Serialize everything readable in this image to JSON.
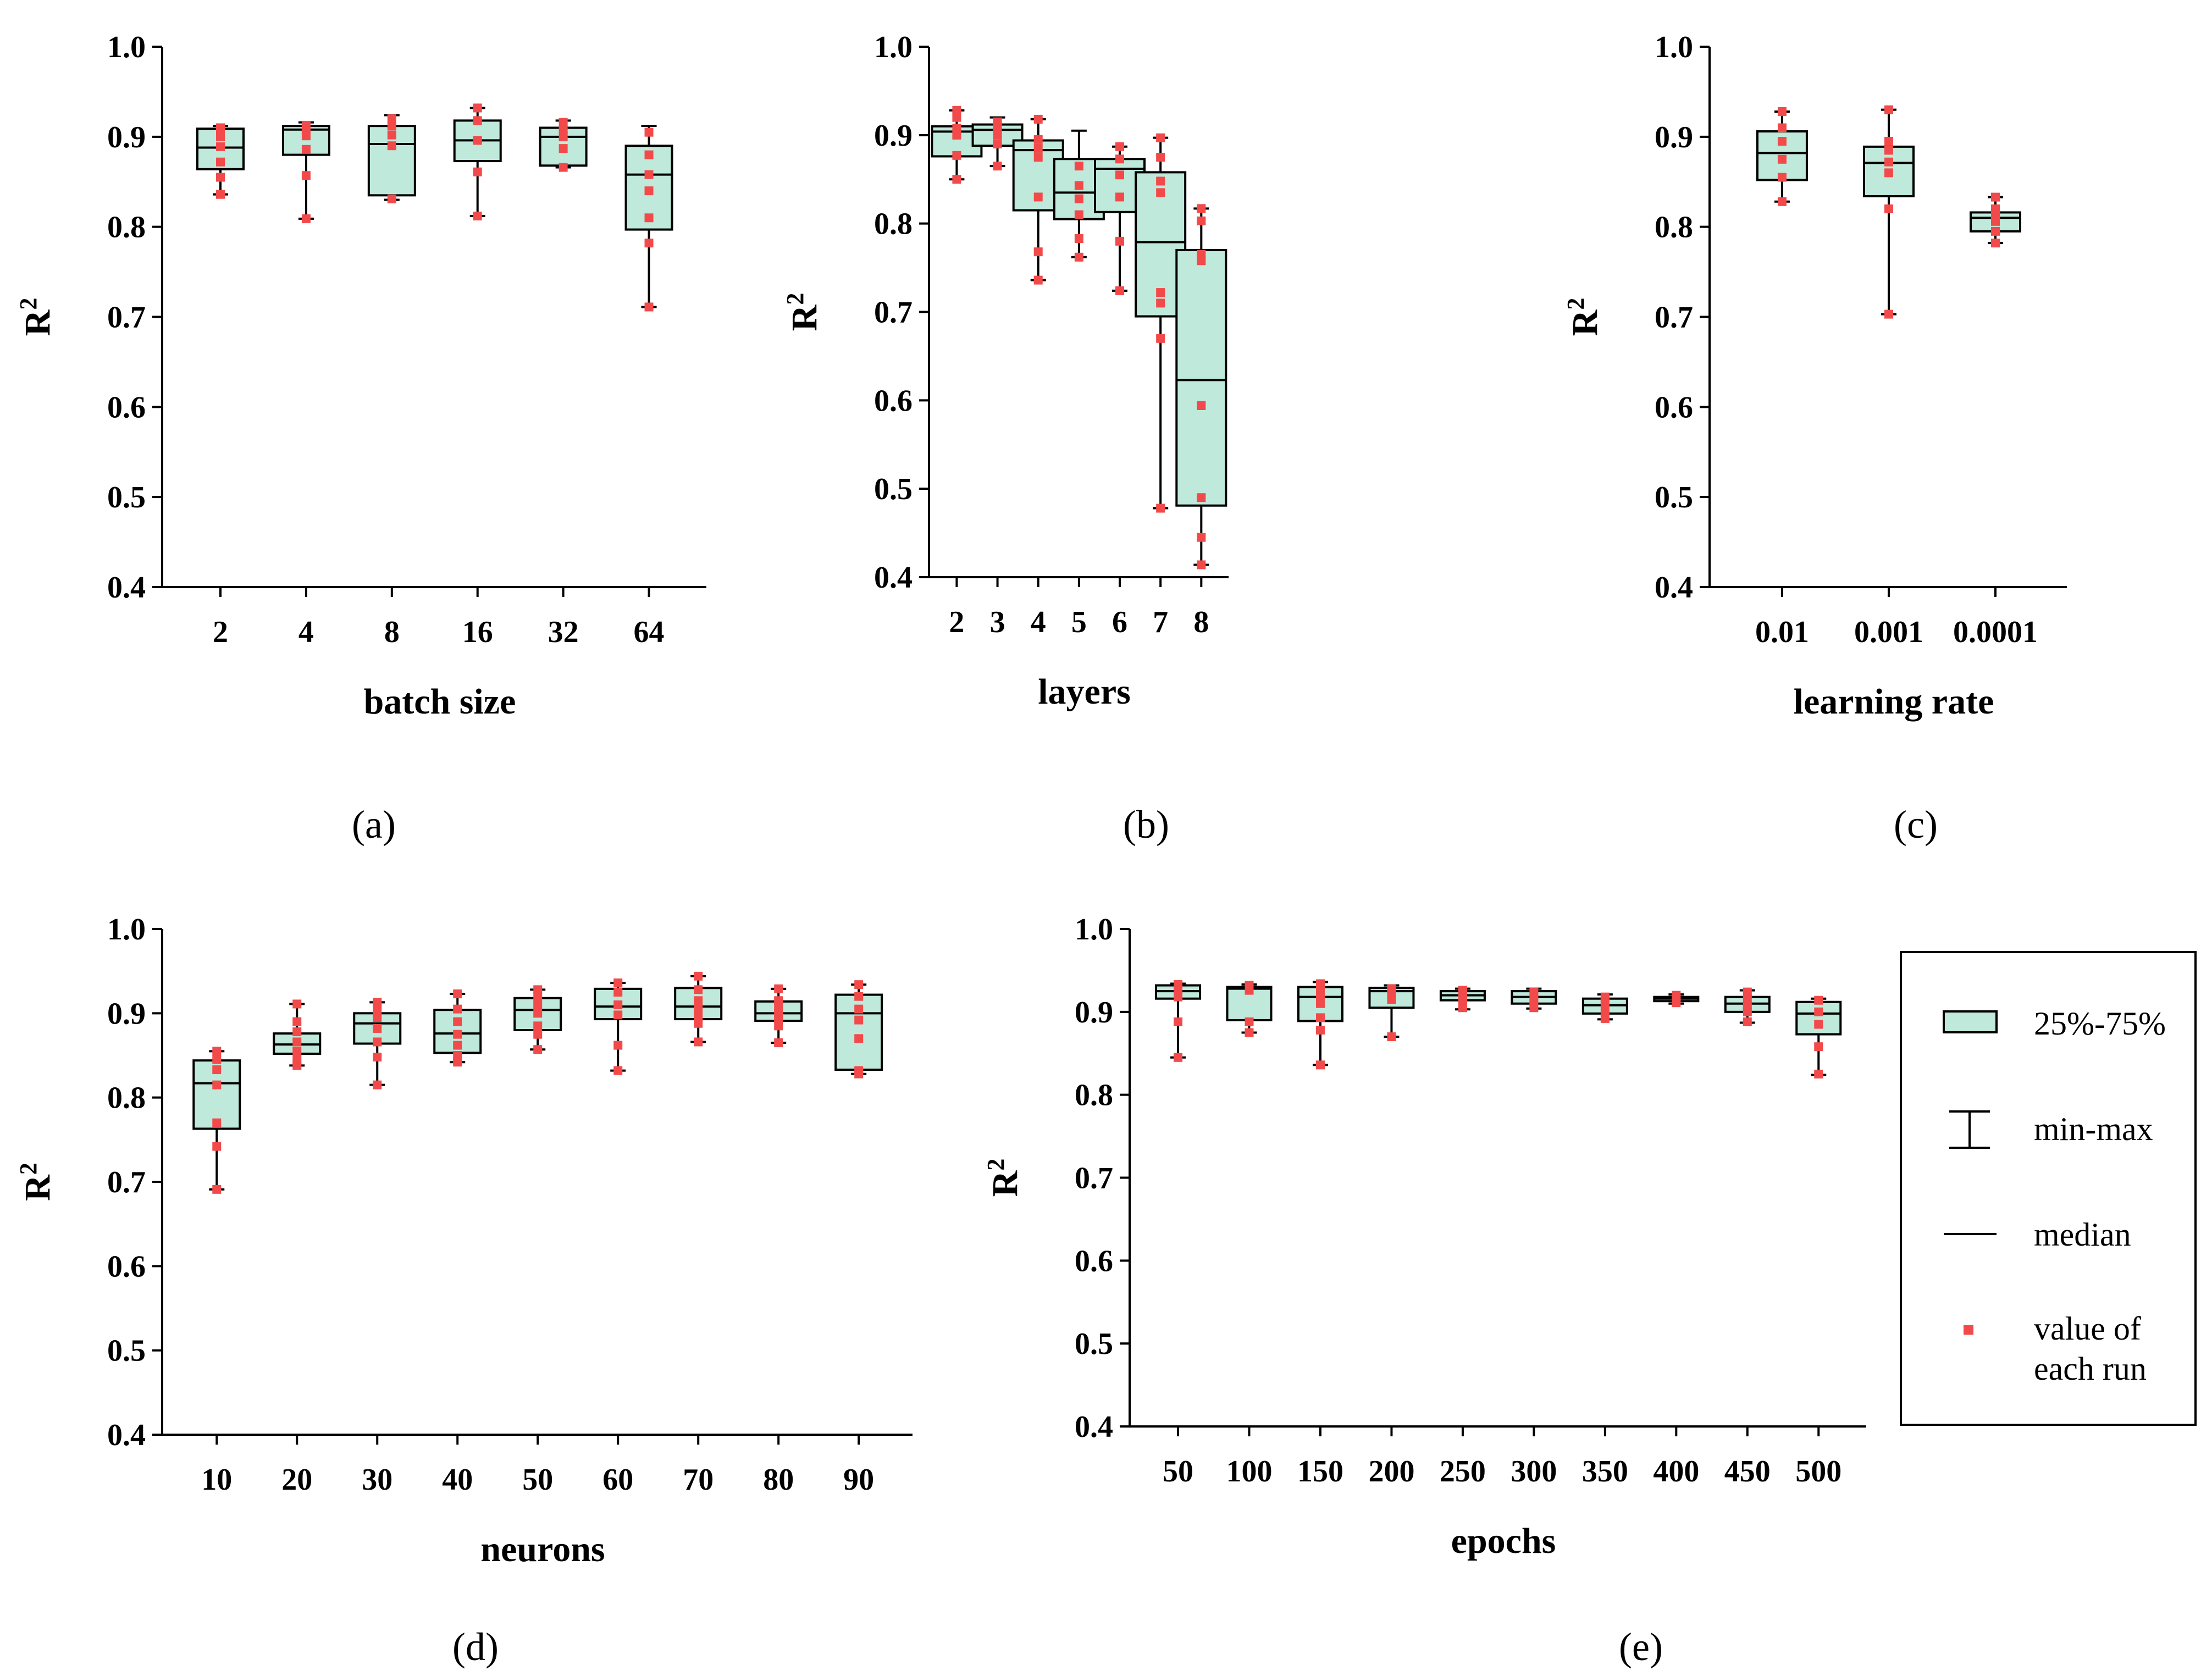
{
  "colors": {
    "box_fill": "#bfeadb",
    "point": "#f24a4a",
    "line": "#000000"
  },
  "legend": {
    "iqr_label": "25%-75%",
    "range_label": "min-max",
    "median_label": "median",
    "point_label_line1": "value of",
    "point_label_line2": "each run"
  },
  "chart_data": [
    {
      "panel": "(a)",
      "type": "box",
      "xlabel": "batch size",
      "ylabel": "R",
      "ylabel_sup": "2",
      "ylim": [
        0.4,
        1.0
      ],
      "yticks": [
        "0.4",
        "0.5",
        "0.6",
        "0.7",
        "0.8",
        "0.9",
        "1.0"
      ],
      "categories": [
        "2",
        "4",
        "8",
        "16",
        "32",
        "64"
      ],
      "boxes": [
        {
          "min": 0.836,
          "q1": 0.864,
          "median": 0.888,
          "q3": 0.909,
          "max": 0.912,
          "points": [
            0.836,
            0.855,
            0.872,
            0.889,
            0.9,
            0.906,
            0.91
          ]
        },
        {
          "min": 0.809,
          "q1": 0.88,
          "median": 0.908,
          "q3": 0.912,
          "max": 0.916,
          "points": [
            0.809,
            0.857,
            0.886,
            0.901,
            0.908,
            0.912
          ]
        },
        {
          "min": 0.83,
          "q1": 0.835,
          "median": 0.892,
          "q3": 0.912,
          "max": 0.924,
          "points": [
            0.831,
            0.89,
            0.902,
            0.912,
            0.92
          ]
        },
        {
          "min": 0.812,
          "q1": 0.873,
          "median": 0.896,
          "q3": 0.918,
          "max": 0.932,
          "points": [
            0.812,
            0.861,
            0.896,
            0.918,
            0.932
          ]
        },
        {
          "min": 0.866,
          "q1": 0.868,
          "median": 0.9,
          "q3": 0.91,
          "max": 0.918,
          "points": [
            0.866,
            0.887,
            0.9,
            0.908,
            0.916
          ]
        },
        {
          "min": 0.711,
          "q1": 0.797,
          "median": 0.858,
          "q3": 0.89,
          "max": 0.912,
          "points": [
            0.711,
            0.782,
            0.81,
            0.84,
            0.858,
            0.88,
            0.905
          ]
        }
      ]
    },
    {
      "panel": "(b)",
      "type": "box",
      "xlabel": "layers",
      "ylabel": "R",
      "ylabel_sup": "2",
      "ylim": [
        0.4,
        1.0
      ],
      "yticks": [
        "0.4",
        "0.5",
        "0.6",
        "0.7",
        "0.8",
        "0.9",
        "1.0"
      ],
      "categories": [
        "2",
        "3",
        "4",
        "5",
        "6",
        "7",
        "8"
      ],
      "boxes": [
        {
          "min": 0.85,
          "q1": 0.876,
          "median": 0.904,
          "q3": 0.91,
          "max": 0.928,
          "points": [
            0.85,
            0.877,
            0.9,
            0.908,
            0.92,
            0.928
          ]
        },
        {
          "min": 0.865,
          "q1": 0.888,
          "median": 0.906,
          "q3": 0.912,
          "max": 0.92,
          "points": [
            0.865,
            0.89,
            0.9,
            0.908,
            0.915
          ]
        },
        {
          "min": 0.736,
          "q1": 0.815,
          "median": 0.883,
          "q3": 0.894,
          "max": 0.918,
          "points": [
            0.736,
            0.768,
            0.83,
            0.875,
            0.885,
            0.895,
            0.918
          ]
        },
        {
          "min": 0.762,
          "q1": 0.805,
          "median": 0.835,
          "q3": 0.873,
          "max": 0.905,
          "points": [
            0.762,
            0.783,
            0.81,
            0.828,
            0.843,
            0.865
          ]
        },
        {
          "min": 0.724,
          "q1": 0.813,
          "median": 0.862,
          "q3": 0.873,
          "max": 0.887,
          "points": [
            0.724,
            0.78,
            0.83,
            0.855,
            0.873,
            0.887
          ]
        },
        {
          "min": 0.478,
          "q1": 0.695,
          "median": 0.779,
          "q3": 0.858,
          "max": 0.897,
          "points": [
            0.478,
            0.67,
            0.71,
            0.722,
            0.835,
            0.848,
            0.875,
            0.897
          ]
        },
        {
          "min": 0.414,
          "q1": 0.481,
          "median": 0.623,
          "q3": 0.77,
          "max": 0.817,
          "points": [
            0.414,
            0.445,
            0.49,
            0.594,
            0.758,
            0.765,
            0.803,
            0.817
          ]
        }
      ]
    },
    {
      "panel": "(c)",
      "type": "box",
      "xlabel": "learning rate",
      "ylabel": "R",
      "ylabel_sup": "2",
      "ylim": [
        0.4,
        1.0
      ],
      "yticks": [
        "0.4",
        "0.5",
        "0.6",
        "0.7",
        "0.8",
        "0.9",
        "1.0"
      ],
      "categories": [
        "0.01",
        "0.001",
        "0.0001"
      ],
      "boxes": [
        {
          "min": 0.828,
          "q1": 0.852,
          "median": 0.882,
          "q3": 0.906,
          "max": 0.928,
          "points": [
            0.828,
            0.855,
            0.875,
            0.895,
            0.91,
            0.928
          ]
        },
        {
          "min": 0.703,
          "q1": 0.834,
          "median": 0.871,
          "q3": 0.889,
          "max": 0.93,
          "points": [
            0.703,
            0.82,
            0.86,
            0.872,
            0.885,
            0.895,
            0.93
          ]
        },
        {
          "min": 0.782,
          "q1": 0.795,
          "median": 0.81,
          "q3": 0.816,
          "max": 0.833,
          "points": [
            0.782,
            0.795,
            0.806,
            0.812,
            0.82,
            0.833
          ]
        }
      ]
    },
    {
      "panel": "(d)",
      "type": "box",
      "xlabel": "neurons",
      "ylabel": "R",
      "ylabel_sup": "2",
      "ylim": [
        0.4,
        1.0
      ],
      "yticks": [
        "0.4",
        "0.5",
        "0.6",
        "0.7",
        "0.8",
        "0.9",
        "1.0"
      ],
      "categories": [
        "10",
        "20",
        "30",
        "40",
        "50",
        "60",
        "70",
        "80",
        "90"
      ],
      "boxes": [
        {
          "min": 0.691,
          "q1": 0.763,
          "median": 0.817,
          "q3": 0.844,
          "max": 0.855,
          "points": [
            0.691,
            0.742,
            0.77,
            0.815,
            0.833,
            0.845,
            0.855
          ]
        },
        {
          "min": 0.838,
          "q1": 0.852,
          "median": 0.863,
          "q3": 0.876,
          "max": 0.911,
          "points": [
            0.838,
            0.845,
            0.855,
            0.866,
            0.878,
            0.89,
            0.911
          ]
        },
        {
          "min": 0.815,
          "q1": 0.864,
          "median": 0.888,
          "q3": 0.9,
          "max": 0.913,
          "points": [
            0.815,
            0.848,
            0.866,
            0.882,
            0.895,
            0.905,
            0.913
          ]
        },
        {
          "min": 0.842,
          "q1": 0.853,
          "median": 0.876,
          "q3": 0.904,
          "max": 0.923,
          "points": [
            0.842,
            0.85,
            0.862,
            0.875,
            0.89,
            0.905,
            0.923
          ]
        },
        {
          "min": 0.857,
          "q1": 0.88,
          "median": 0.904,
          "q3": 0.918,
          "max": 0.928,
          "points": [
            0.857,
            0.875,
            0.885,
            0.9,
            0.91,
            0.92,
            0.928
          ]
        },
        {
          "min": 0.832,
          "q1": 0.893,
          "median": 0.908,
          "q3": 0.929,
          "max": 0.936,
          "points": [
            0.832,
            0.862,
            0.898,
            0.91,
            0.925,
            0.936
          ]
        },
        {
          "min": 0.866,
          "q1": 0.893,
          "median": 0.908,
          "q3": 0.93,
          "max": 0.944,
          "points": [
            0.866,
            0.888,
            0.895,
            0.905,
            0.915,
            0.928,
            0.944
          ]
        },
        {
          "min": 0.865,
          "q1": 0.891,
          "median": 0.9,
          "q3": 0.914,
          "max": 0.929,
          "points": [
            0.865,
            0.885,
            0.893,
            0.9,
            0.908,
            0.915,
            0.929
          ]
        },
        {
          "min": 0.828,
          "q1": 0.833,
          "median": 0.9,
          "q3": 0.922,
          "max": 0.934,
          "points": [
            0.828,
            0.832,
            0.87,
            0.892,
            0.905,
            0.92,
            0.934
          ]
        }
      ]
    },
    {
      "panel": "(e)",
      "type": "box",
      "xlabel": "epochs",
      "ylabel": "R",
      "ylabel_sup": "2",
      "ylim": [
        0.4,
        1.0
      ],
      "yticks": [
        "0.4",
        "0.5",
        "0.6",
        "0.7",
        "0.8",
        "0.9",
        "1.0"
      ],
      "categories": [
        "50",
        "100",
        "150",
        "200",
        "250",
        "300",
        "350",
        "400",
        "450",
        "500"
      ],
      "boxes": [
        {
          "min": 0.845,
          "q1": 0.916,
          "median": 0.925,
          "q3": 0.932,
          "max": 0.934,
          "points": [
            0.845,
            0.888,
            0.918,
            0.926,
            0.933
          ]
        },
        {
          "min": 0.875,
          "q1": 0.89,
          "median": 0.928,
          "q3": 0.93,
          "max": 0.933,
          "points": [
            0.875,
            0.888,
            0.926,
            0.932
          ]
        },
        {
          "min": 0.836,
          "q1": 0.889,
          "median": 0.918,
          "q3": 0.93,
          "max": 0.936,
          "points": [
            0.836,
            0.878,
            0.893,
            0.91,
            0.92,
            0.928,
            0.934
          ]
        },
        {
          "min": 0.87,
          "q1": 0.905,
          "median": 0.925,
          "q3": 0.929,
          "max": 0.932,
          "points": [
            0.87,
            0.915,
            0.922,
            0.928
          ]
        },
        {
          "min": 0.903,
          "q1": 0.914,
          "median": 0.92,
          "q3": 0.925,
          "max": 0.928,
          "points": [
            0.905,
            0.915,
            0.922,
            0.926
          ]
        },
        {
          "min": 0.904,
          "q1": 0.91,
          "median": 0.918,
          "q3": 0.925,
          "max": 0.928,
          "points": [
            0.905,
            0.912,
            0.918,
            0.924
          ]
        },
        {
          "min": 0.891,
          "q1": 0.898,
          "median": 0.908,
          "q3": 0.916,
          "max": 0.921,
          "points": [
            0.892,
            0.9,
            0.91,
            0.918
          ]
        },
        {
          "min": 0.91,
          "q1": 0.913,
          "median": 0.916,
          "q3": 0.918,
          "max": 0.921,
          "points": [
            0.911,
            0.916,
            0.92
          ]
        },
        {
          "min": 0.887,
          "q1": 0.9,
          "median": 0.91,
          "q3": 0.918,
          "max": 0.926,
          "points": [
            0.888,
            0.9,
            0.908,
            0.916,
            0.924
          ]
        },
        {
          "min": 0.824,
          "q1": 0.873,
          "median": 0.898,
          "q3": 0.912,
          "max": 0.916,
          "points": [
            0.825,
            0.858,
            0.885,
            0.9,
            0.914
          ]
        }
      ]
    }
  ]
}
